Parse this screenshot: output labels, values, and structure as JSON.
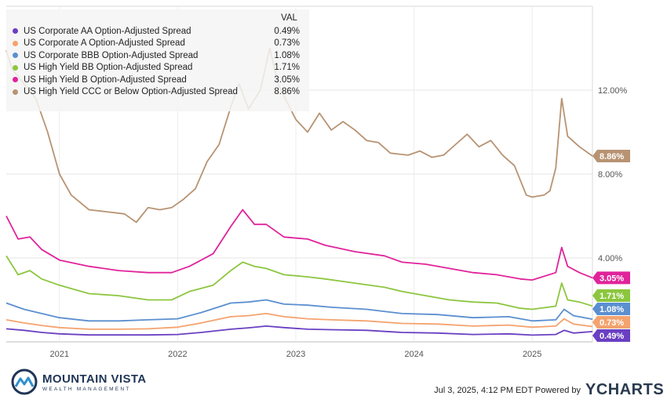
{
  "chart_data": {
    "type": "line",
    "header": "VAL",
    "x_tick_labels": [
      "2021",
      "2022",
      "2023",
      "2024",
      "2025"
    ],
    "y_tick_labels": [
      "4.00%",
      "8.00%",
      "12.00%"
    ],
    "y_ticks": [
      4,
      8,
      12
    ],
    "ylim": [
      0,
      16
    ],
    "xlim": [
      2020.55,
      2025.51
    ],
    "grid": true,
    "legend_position": "top-left",
    "series": [
      {
        "name": "US Corporate AA Option-Adjusted Spread",
        "value_label": "0.49%",
        "color": "#6a3fc2",
        "x": [
          2020.55,
          2020.7,
          2020.85,
          2021.0,
          2021.25,
          2021.5,
          2021.75,
          2022.0,
          2022.2,
          2022.45,
          2022.6,
          2022.75,
          2022.9,
          2023.1,
          2023.3,
          2023.6,
          2023.9,
          2024.2,
          2024.5,
          2024.8,
          2025.0,
          2025.2,
          2025.27,
          2025.35,
          2025.51
        ],
        "y": [
          0.62,
          0.55,
          0.45,
          0.38,
          0.33,
          0.33,
          0.33,
          0.35,
          0.45,
          0.6,
          0.67,
          0.75,
          0.68,
          0.6,
          0.58,
          0.55,
          0.45,
          0.42,
          0.35,
          0.38,
          0.32,
          0.35,
          0.55,
          0.42,
          0.49
        ]
      },
      {
        "name": "US Corporate A Option-Adjusted Spread",
        "value_label": "0.73%",
        "color": "#f4a36e",
        "x": [
          2020.55,
          2020.7,
          2020.85,
          2021.0,
          2021.25,
          2021.5,
          2021.75,
          2022.0,
          2022.2,
          2022.45,
          2022.6,
          2022.75,
          2022.9,
          2023.1,
          2023.3,
          2023.6,
          2023.9,
          2024.2,
          2024.5,
          2024.8,
          2025.0,
          2025.2,
          2025.27,
          2025.35,
          2025.51
        ],
        "y": [
          1.05,
          0.9,
          0.78,
          0.68,
          0.6,
          0.6,
          0.62,
          0.7,
          0.9,
          1.2,
          1.25,
          1.35,
          1.2,
          1.1,
          1.05,
          1.0,
          0.88,
          0.85,
          0.75,
          0.8,
          0.7,
          0.75,
          1.1,
          0.85,
          0.73
        ]
      },
      {
        "name": "US Corporate BBB Option-Adjusted Spread",
        "value_label": "1.08%",
        "color": "#5b8fd0",
        "x": [
          2020.55,
          2020.7,
          2020.85,
          2021.0,
          2021.25,
          2021.5,
          2021.75,
          2022.0,
          2022.2,
          2022.45,
          2022.6,
          2022.75,
          2022.9,
          2023.1,
          2023.3,
          2023.6,
          2023.9,
          2024.2,
          2024.5,
          2024.8,
          2025.0,
          2025.2,
          2025.27,
          2025.35,
          2025.51
        ],
        "y": [
          1.85,
          1.55,
          1.35,
          1.15,
          1.0,
          1.0,
          1.05,
          1.1,
          1.4,
          1.85,
          1.9,
          2.0,
          1.8,
          1.75,
          1.65,
          1.55,
          1.35,
          1.3,
          1.15,
          1.2,
          1.0,
          1.05,
          1.55,
          1.25,
          1.08
        ]
      },
      {
        "name": "US High Yield BB Option-Adjusted Spread",
        "value_label": "1.71%",
        "color": "#8cc63f",
        "x": [
          2020.55,
          2020.65,
          2020.75,
          2020.85,
          2021.0,
          2021.25,
          2021.5,
          2021.75,
          2021.95,
          2022.1,
          2022.3,
          2022.45,
          2022.55,
          2022.65,
          2022.75,
          2022.9,
          2023.1,
          2023.25,
          2023.5,
          2023.75,
          2023.9,
          2024.1,
          2024.3,
          2024.5,
          2024.7,
          2024.9,
          2025.0,
          2025.2,
          2025.25,
          2025.3,
          2025.4,
          2025.51
        ],
        "y": [
          4.1,
          3.2,
          3.4,
          3.0,
          2.7,
          2.3,
          2.2,
          2.0,
          2.0,
          2.4,
          2.7,
          3.4,
          3.8,
          3.6,
          3.5,
          3.2,
          3.1,
          3.0,
          2.8,
          2.6,
          2.4,
          2.2,
          2.0,
          1.9,
          1.85,
          1.6,
          1.55,
          1.7,
          2.8,
          2.0,
          1.9,
          1.71
        ]
      },
      {
        "name": "US High Yield B Option-Adjusted Spread",
        "value_label": "3.05%",
        "color": "#e0239b",
        "x": [
          2020.55,
          2020.65,
          2020.75,
          2020.85,
          2021.0,
          2021.25,
          2021.5,
          2021.75,
          2021.95,
          2022.1,
          2022.3,
          2022.45,
          2022.55,
          2022.65,
          2022.75,
          2022.9,
          2023.1,
          2023.25,
          2023.5,
          2023.75,
          2023.9,
          2024.1,
          2024.3,
          2024.5,
          2024.7,
          2024.9,
          2025.0,
          2025.2,
          2025.25,
          2025.3,
          2025.4,
          2025.51
        ],
        "y": [
          6.0,
          4.9,
          5.0,
          4.4,
          3.9,
          3.6,
          3.4,
          3.3,
          3.3,
          3.6,
          4.2,
          5.5,
          6.3,
          5.6,
          5.6,
          5.0,
          4.9,
          4.6,
          4.3,
          4.1,
          3.8,
          3.7,
          3.5,
          3.3,
          3.2,
          3.0,
          2.95,
          3.3,
          4.5,
          3.6,
          3.3,
          3.05
        ]
      },
      {
        "name": "US High Yield CCC or Below Option-Adjusted Spread",
        "value_label": "8.86%",
        "color": "#b89373",
        "x": [
          2020.55,
          2020.6,
          2020.7,
          2020.8,
          2020.9,
          2021.0,
          2021.1,
          2021.25,
          2021.4,
          2021.55,
          2021.65,
          2021.75,
          2021.85,
          2021.95,
          2022.05,
          2022.15,
          2022.25,
          2022.35,
          2022.45,
          2022.52,
          2022.6,
          2022.7,
          2022.78,
          2022.85,
          2022.92,
          2023.0,
          2023.1,
          2023.2,
          2023.3,
          2023.4,
          2023.5,
          2023.6,
          2023.7,
          2023.8,
          2023.95,
          2024.05,
          2024.15,
          2024.25,
          2024.35,
          2024.45,
          2024.55,
          2024.65,
          2024.75,
          2024.85,
          2024.95,
          2025.0,
          2025.1,
          2025.15,
          2025.2,
          2025.25,
          2025.3,
          2025.4,
          2025.51
        ],
        "y": [
          13.9,
          13.0,
          12.3,
          11.6,
          10.0,
          8.0,
          7.0,
          6.3,
          6.2,
          6.1,
          5.7,
          6.4,
          6.3,
          6.4,
          6.8,
          7.3,
          8.6,
          9.4,
          11.2,
          12.3,
          11.1,
          12.0,
          14.0,
          12.3,
          11.5,
          10.6,
          10.0,
          10.9,
          10.1,
          10.5,
          10.1,
          9.6,
          9.5,
          9.0,
          8.9,
          9.1,
          8.8,
          8.9,
          9.4,
          9.9,
          9.3,
          9.6,
          8.9,
          8.4,
          7.0,
          6.9,
          7.0,
          7.2,
          8.3,
          11.6,
          9.8,
          9.3,
          8.86
        ]
      }
    ]
  },
  "footer": {
    "timestamp": "Jul 3, 2025, 4:12 PM EDT Powered by",
    "brand": "YCHARTS"
  },
  "logo": {
    "name": "MOUNTAIN VISTA",
    "tagline": "WEALTH MANAGEMENT"
  }
}
